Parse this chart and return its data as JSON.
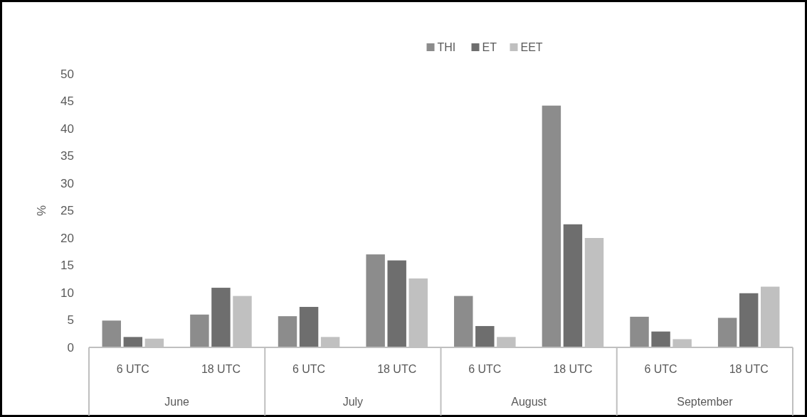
{
  "chart_data": {
    "type": "bar",
    "ylabel": "%",
    "categories": [
      "6 UTC",
      "18 UTC",
      "6 UTC",
      "18 UTC",
      "6 UTC",
      "18 UTC",
      "6 UTC",
      "18 UTC"
    ],
    "annotations": [
      "June",
      "July",
      "August",
      "September"
    ],
    "series": [
      {
        "name": "THI",
        "color": "#8c8c8c",
        "values": [
          4.9,
          6.0,
          5.7,
          17.0,
          9.4,
          44.2,
          5.6,
          5.4
        ]
      },
      {
        "name": "ET",
        "color": "#6e6e6e",
        "values": [
          1.9,
          10.9,
          7.4,
          15.9,
          3.9,
          22.5,
          2.9,
          9.9
        ]
      },
      {
        "name": "EET",
        "color": "#c0c0c0",
        "values": [
          1.6,
          9.4,
          1.9,
          12.6,
          1.9,
          20.0,
          1.5,
          11.1
        ]
      }
    ],
    "ylim": [
      0,
      50
    ],
    "yticks": [
      0,
      5,
      10,
      15,
      20,
      25,
      30,
      35,
      40,
      45,
      50
    ],
    "grid": false,
    "legend": "top"
  }
}
